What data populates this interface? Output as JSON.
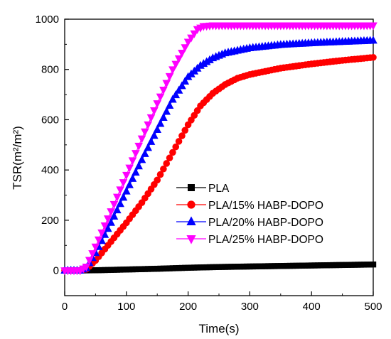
{
  "chart_data": {
    "type": "line",
    "xlabel": "Time(s)",
    "ylabel": "TSR(m²/m²)",
    "xlim": [
      0,
      500
    ],
    "ylim": [
      -100,
      1000
    ],
    "x_ticks": [
      "0",
      "100",
      "200",
      "300",
      "400",
      "500"
    ],
    "y_ticks": [
      "0",
      "200",
      "400",
      "600",
      "800",
      "1000"
    ],
    "legend_position": "bottom-right-inside",
    "grid": false,
    "series": [
      {
        "name": "PLA",
        "color": "#000000",
        "marker": "square",
        "points": [
          [
            0,
            0
          ],
          [
            50,
            1
          ],
          [
            100,
            4
          ],
          [
            150,
            7
          ],
          [
            200,
            11
          ],
          [
            250,
            14
          ],
          [
            300,
            16
          ],
          [
            350,
            18
          ],
          [
            400,
            20
          ],
          [
            450,
            22
          ],
          [
            500,
            24
          ]
        ]
      },
      {
        "name": "PLA/15% HABP-DOPO",
        "color": "#FF0000",
        "marker": "circle",
        "points": [
          [
            0,
            0
          ],
          [
            25,
            0
          ],
          [
            35,
            5
          ],
          [
            50,
            40
          ],
          [
            75,
            115
          ],
          [
            100,
            190
          ],
          [
            125,
            270
          ],
          [
            150,
            360
          ],
          [
            175,
            470
          ],
          [
            200,
            580
          ],
          [
            220,
            655
          ],
          [
            240,
            705
          ],
          [
            260,
            740
          ],
          [
            280,
            765
          ],
          [
            300,
            780
          ],
          [
            350,
            805
          ],
          [
            400,
            822
          ],
          [
            450,
            836
          ],
          [
            500,
            848
          ]
        ]
      },
      {
        "name": "PLA/20% HABP-DOPO",
        "color": "#0000FF",
        "marker": "triangle-up",
        "points": [
          [
            0,
            0
          ],
          [
            25,
            0
          ],
          [
            35,
            10
          ],
          [
            50,
            70
          ],
          [
            75,
            190
          ],
          [
            100,
            315
          ],
          [
            125,
            440
          ],
          [
            150,
            560
          ],
          [
            175,
            680
          ],
          [
            200,
            770
          ],
          [
            220,
            815
          ],
          [
            240,
            845
          ],
          [
            260,
            865
          ],
          [
            300,
            885
          ],
          [
            350,
            898
          ],
          [
            400,
            905
          ],
          [
            450,
            910
          ],
          [
            500,
            915
          ]
        ]
      },
      {
        "name": "PLA/25% HABP-DOPO",
        "color": "#FF00FF",
        "marker": "triangle-down",
        "points": [
          [
            0,
            0
          ],
          [
            25,
            0
          ],
          [
            35,
            15
          ],
          [
            50,
            95
          ],
          [
            75,
            235
          ],
          [
            100,
            380
          ],
          [
            125,
            525
          ],
          [
            150,
            665
          ],
          [
            175,
            800
          ],
          [
            200,
            910
          ],
          [
            215,
            960
          ],
          [
            225,
            972
          ],
          [
            240,
            975
          ],
          [
            300,
            975
          ],
          [
            400,
            975
          ],
          [
            500,
            975
          ]
        ]
      }
    ]
  }
}
